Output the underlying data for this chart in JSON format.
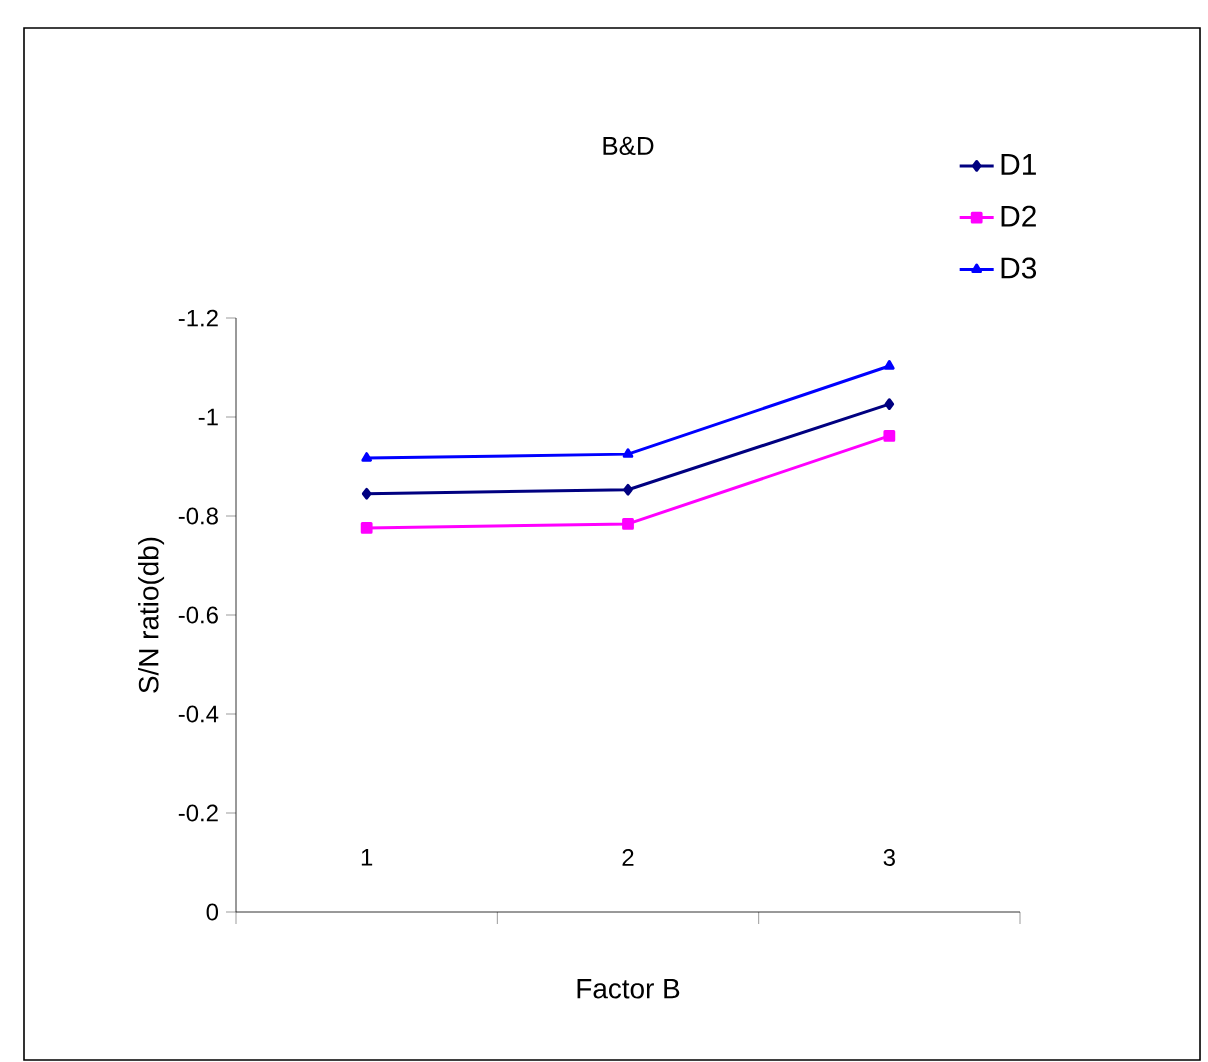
{
  "chart_data": {
    "type": "line",
    "title": "B&D",
    "xlabel": "Factor B",
    "ylabel": "S/N ratio(db)",
    "categories": [
      "1",
      "2",
      "3"
    ],
    "series": [
      {
        "name": "D1",
        "color": "#000080",
        "marker": "diamond",
        "values": [
          -0.845,
          -0.853,
          -1.026
        ]
      },
      {
        "name": "D2",
        "color": "#ff00ff",
        "marker": "square",
        "values": [
          -0.776,
          -0.784,
          -0.962
        ]
      },
      {
        "name": "D3",
        "color": "#0000ff",
        "marker": "triangle",
        "values": [
          -0.917,
          -0.925,
          -1.103
        ]
      }
    ],
    "ylim": [
      0,
      -1.2
    ],
    "yticks": [
      0,
      -0.2,
      -0.4,
      -0.6,
      -0.8,
      -1,
      -1.2
    ],
    "legend": "top right",
    "line_style": "solid",
    "grid": false
  }
}
